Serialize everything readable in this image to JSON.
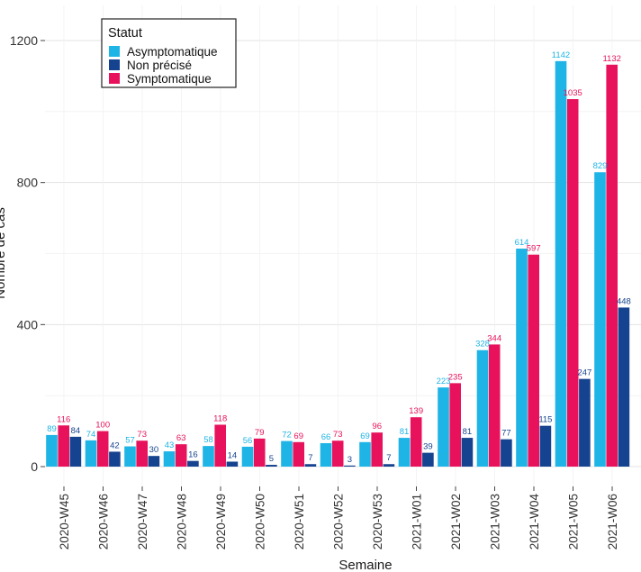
{
  "chart_data": {
    "type": "bar",
    "title": "",
    "xlabel": "Semaine",
    "ylabel": "Nombre de cas",
    "ylim": [
      0,
      1200
    ],
    "yticks": [
      0,
      400,
      800,
      1200
    ],
    "grid": true,
    "legend": {
      "title": "Statut",
      "placement": "top-left"
    },
    "categories": [
      "2020-W45",
      "2020-W46",
      "2020-W47",
      "2020-W48",
      "2020-W49",
      "2020-W50",
      "2020-W51",
      "2020-W52",
      "2020-W53",
      "2021-W01",
      "2021-W02",
      "2021-W03",
      "2021-W04",
      "2021-W05",
      "2021-W06"
    ],
    "series": [
      {
        "name": "Asymptomatique",
        "color": "#1eb4e6",
        "values": [
          89,
          74,
          57,
          43,
          58,
          56,
          72,
          66,
          69,
          81,
          223,
          328,
          614,
          1142,
          829
        ]
      },
      {
        "name": "Symptomatique",
        "color": "#e8125c",
        "values": [
          116,
          100,
          73,
          63,
          118,
          79,
          69,
          73,
          96,
          139,
          235,
          344,
          597,
          1035,
          1132
        ]
      },
      {
        "name": "Non précisé",
        "color": "#16438f",
        "values": [
          84,
          42,
          30,
          16,
          14,
          5,
          7,
          3,
          7,
          39,
          81,
          77,
          115,
          247,
          448
        ]
      }
    ],
    "legend_order": [
      "Asymptomatique",
      "Non précisé",
      "Symptomatique"
    ]
  }
}
